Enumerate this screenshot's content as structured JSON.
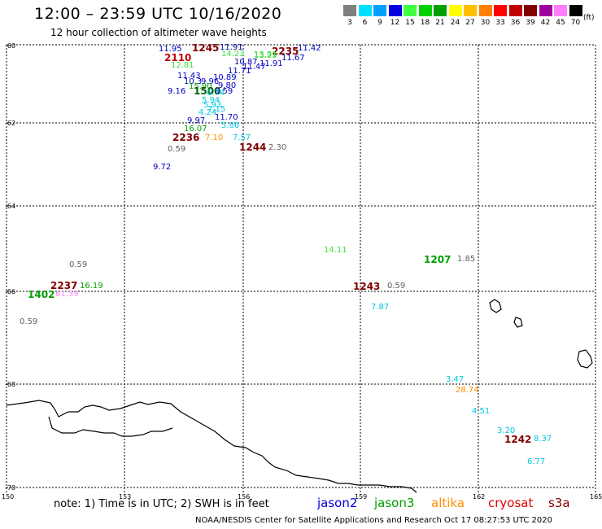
{
  "title": "12:00 – 23:59 UTC 10/16/2020",
  "subtitle": "12 hour collection of altimeter wave heights",
  "scale": {
    "labels": [
      "3",
      "6",
      "9",
      "12",
      "15",
      "18",
      "21",
      "24",
      "27",
      "30",
      "33",
      "36",
      "39",
      "42",
      "45",
      "70"
    ],
    "unit": "(ft)",
    "colors": [
      "#7f7f7f",
      "#00e0ff",
      "#00a0ff",
      "#0000e0",
      "#40ff40",
      "#00d000",
      "#00a000",
      "#ffff00",
      "#ffc000",
      "#ff8000",
      "#ff0000",
      "#c00000",
      "#800000",
      "#a000a0",
      "#ff80ff",
      "#000000"
    ]
  },
  "axes": {
    "lat_labels": [
      "-60",
      "-62",
      "-64",
      "-66",
      "-68",
      "-70"
    ],
    "lon_labels": [
      "150",
      "153",
      "156",
      "159",
      "162",
      "165"
    ]
  },
  "labels": [
    {
      "t": "11.95",
      "c": "#0000c0"
    },
    {
      "t": "1245",
      "c": "#800000",
      "b": true
    },
    {
      "t": "11.91",
      "c": "#0000c0"
    },
    {
      "t": "14.23",
      "c": "#40e040"
    },
    {
      "t": "2235",
      "c": "#800000",
      "b": true
    },
    {
      "t": "13.91",
      "c": "#40e040"
    },
    {
      "t": "11.42",
      "c": "#0000c0"
    },
    {
      "t": "2110",
      "c": "#c00000",
      "b": true
    },
    {
      "t": "13.29",
      "c": "#40e040"
    },
    {
      "t": "11.67",
      "c": "#0000c0"
    },
    {
      "t": "10.87",
      "c": "#0000c0"
    },
    {
      "t": "12.81",
      "c": "#40e040"
    },
    {
      "t": "11.91",
      "c": "#0000c0"
    },
    {
      "t": "11.47",
      "c": "#0000c0"
    },
    {
      "t": "11.71",
      "c": "#0000c0"
    },
    {
      "t": "11.43",
      "c": "#0000c0"
    },
    {
      "t": "10.89",
      "c": "#0000c0"
    },
    {
      "t": "10.3",
      "c": "#0000c0"
    },
    {
      "t": "9.96",
      "c": "#0000c0"
    },
    {
      "t": "9.80",
      "c": "#0000c0"
    },
    {
      "t": "15.90",
      "c": "#00a000"
    },
    {
      "t": "9.16",
      "c": "#0000c0"
    },
    {
      "t": "1500",
      "c": "#006000",
      "b": true
    },
    {
      "t": "8.59",
      "c": "#0000c0"
    },
    {
      "t": "6.74",
      "c": "#00c8e0"
    },
    {
      "t": "5.94",
      "c": "#00c8e0"
    },
    {
      "t": "5.93",
      "c": "#00c8e0"
    },
    {
      "t": "7.15",
      "c": "#00c8e0"
    },
    {
      "t": "4.24",
      "c": "#00c8e0"
    },
    {
      "t": "11.70",
      "c": "#0000c0"
    },
    {
      "t": "9.97",
      "c": "#0000c0"
    },
    {
      "t": "5.86",
      "c": "#00c8e0"
    },
    {
      "t": "16.07",
      "c": "#00a000"
    },
    {
      "t": "2236",
      "c": "#800000",
      "b": true
    },
    {
      "t": "7.10",
      "c": "#ff9000"
    },
    {
      "t": "7.57",
      "c": "#00c8e0"
    },
    {
      "t": "0.59",
      "c": "#606060"
    },
    {
      "t": "1244",
      "c": "#800000",
      "b": true
    },
    {
      "t": "2.30",
      "c": "#606060"
    },
    {
      "t": "9.72",
      "c": "#0000c0"
    },
    {
      "t": "14.11",
      "c": "#40e040"
    },
    {
      "t": "1207",
      "c": "#00a000",
      "b": true
    },
    {
      "t": "1.85",
      "c": "#606060"
    },
    {
      "t": "0.59",
      "c": "#606060"
    },
    {
      "t": "2237",
      "c": "#800000",
      "b": true
    },
    {
      "t": "16.19",
      "c": "#00a000"
    },
    {
      "t": "1243",
      "c": "#800000",
      "b": true
    },
    {
      "t": "0.59",
      "c": "#606060"
    },
    {
      "t": "1402",
      "c": "#00a000",
      "b": true
    },
    {
      "t": "61.39",
      "c": "#ff80ff"
    },
    {
      "t": "7.87",
      "c": "#00c8e0"
    },
    {
      "t": "0.59",
      "c": "#606060"
    },
    {
      "t": "3.47",
      "c": "#00c8e0"
    },
    {
      "t": "28.74",
      "c": "#ff9000"
    },
    {
      "t": "4.51",
      "c": "#00c8e0"
    },
    {
      "t": "3.20",
      "c": "#00c8e0"
    },
    {
      "t": "1242",
      "c": "#800000",
      "b": true
    },
    {
      "t": "8.37",
      "c": "#00c8e0"
    },
    {
      "t": "6.77",
      "c": "#00c8e0"
    }
  ],
  "note": "note:  1) Time is in UTC;  2) SWH is in feet",
  "legend": [
    {
      "name": "jason2",
      "color": "#0000e0"
    },
    {
      "name": "jason3",
      "color": "#00a000"
    },
    {
      "name": "altika",
      "color": "#ff9000"
    },
    {
      "name": "cryosat",
      "color": "#e00000"
    },
    {
      "name": "s3a",
      "color": "#800000"
    }
  ],
  "credit": "NOAA/NESDIS Center for Satellite Applications and Research    Oct 17 08:27:53 UTC 2020"
}
